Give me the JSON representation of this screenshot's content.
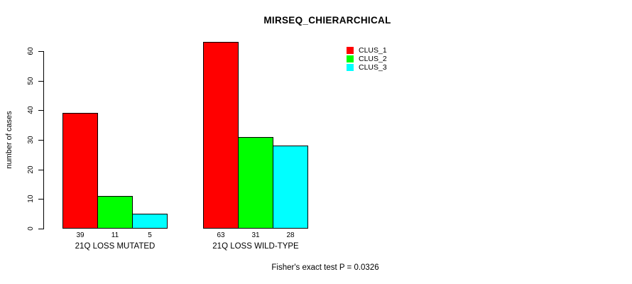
{
  "chart_data": {
    "type": "bar",
    "title": "MIRSEQ_CHIERARCHICAL",
    "xlabel": "",
    "ylabel": "number of cases",
    "categories": [
      "21Q LOSS MUTATED",
      "21Q LOSS WILD-TYPE"
    ],
    "series": [
      {
        "name": "CLUS_1",
        "color": "#ff0000",
        "values": [
          39,
          63
        ]
      },
      {
        "name": "CLUS_2",
        "color": "#00ff00",
        "values": [
          11,
          31
        ]
      },
      {
        "name": "CLUS_3",
        "color": "#00ffff",
        "values": [
          5,
          28
        ]
      }
    ],
    "yticks": [
      0,
      10,
      20,
      30,
      40,
      50,
      60
    ],
    "ylim": [
      0,
      65
    ],
    "grid": false,
    "bar_value_labels_shown": true,
    "legend_position": "top-right",
    "annotation": "Fisher's exact test P = 0.0326"
  }
}
